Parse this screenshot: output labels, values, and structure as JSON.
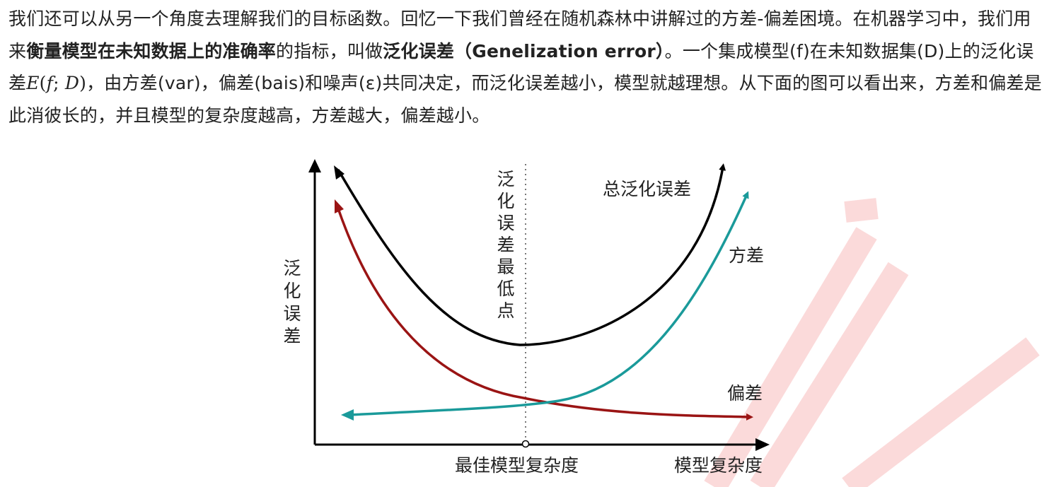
{
  "paragraph": {
    "s1": "我们还可以从另一个角度去理解我们的目标函数。回忆一下我们曾经在随机森林中讲解过的方差-偏差困境。在机器学习中，我们用来",
    "bold1": "衡量模型在未知数据上的准确率",
    "s2": "的指标，叫做",
    "bold2": "泛化误差（Genelization error）",
    "s3": "。一个集成模型(f)在未知数据集(D)上的泛化误差",
    "math": {
      "e": "E",
      "open": "(",
      "f": "f",
      "semi": ";",
      "d": "D",
      "close": ")"
    },
    "s4": "，由方差(var)，偏差(bais)和噪声(ε)共同决定，而泛化误差越小，模型就越理想。从下面的图可以看出来，方差和偏差是此消彼长的，并且模型的复杂度越高，方差越大，偏差越小。"
  },
  "figure": {
    "y_axis_label": [
      "泛",
      "化",
      "误",
      "差"
    ],
    "x_axis_label": "模型复杂度",
    "optimum_label": "最佳模型复杂度",
    "min_point_label": [
      "泛",
      "化",
      "误",
      "差",
      "最",
      "低",
      "点"
    ],
    "curves": {
      "total": {
        "label": "总泛化误差",
        "color": "#000000"
      },
      "variance": {
        "label": "方差",
        "color": "#1a9a9a"
      },
      "bias": {
        "label": "偏差",
        "color": "#9a1414"
      }
    },
    "axis_color": "#000000",
    "guide_color": "#777777"
  },
  "watermark_color": "#fbdada"
}
